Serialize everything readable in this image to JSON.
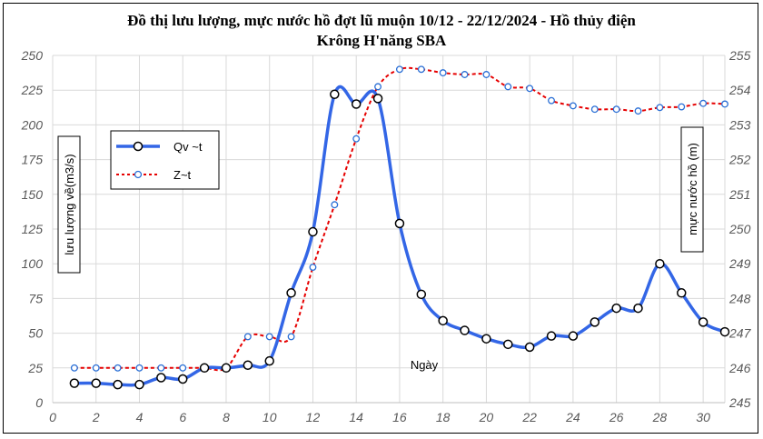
{
  "chart_data": {
    "type": "line",
    "title_line1": "Đồ thị lưu lượng, mực nước hồ đợt lũ muộn 10/12 - 22/12/2024 - Hồ thủy điện",
    "title_line2": "Krông H'năng SBA",
    "xlabel": "Ngày",
    "ylabel_left": "lưu lượng về(m3/s)",
    "ylabel_right": "mực nước hồ (m)",
    "xlim": [
      0,
      31
    ],
    "x_ticks": [
      "0",
      "2",
      "4",
      "6",
      "8",
      "10",
      "12",
      "14",
      "16",
      "18",
      "20",
      "22",
      "24",
      "26",
      "28",
      "30"
    ],
    "ylim_left": [
      0,
      250
    ],
    "y_ticks_left": [
      "0",
      "25",
      "50",
      "75",
      "100",
      "125",
      "150",
      "175",
      "200",
      "225",
      "250"
    ],
    "ylim_right": [
      245,
      255
    ],
    "y_ticks_right": [
      "245",
      "246",
      "247",
      "248",
      "249",
      "250",
      "251",
      "252",
      "253",
      "254",
      "255"
    ],
    "grid": true,
    "legend": "left",
    "series": [
      {
        "name": "Qv ~t",
        "axis": "left",
        "color": "#3366e6",
        "style": "solid",
        "x": [
          1,
          2,
          3,
          4,
          5,
          6,
          7,
          8,
          9,
          10,
          11,
          12,
          13,
          14,
          15,
          16,
          17,
          18,
          19,
          20,
          21,
          22,
          23,
          24,
          25,
          26,
          27,
          28,
          29,
          30,
          31
        ],
        "values": [
          14,
          14,
          13,
          13,
          18,
          17,
          25,
          25,
          27,
          30,
          79,
          123,
          222,
          215,
          219,
          129,
          78,
          59,
          52,
          46,
          42,
          40,
          48,
          48,
          58,
          68,
          68,
          100,
          79,
          58,
          51
        ]
      },
      {
        "name": "Z~t",
        "axis": "right",
        "color": "#e60000",
        "style": "dashed",
        "x": [
          1,
          2,
          3,
          4,
          5,
          6,
          7,
          8,
          9,
          10,
          11,
          12,
          13,
          14,
          15,
          16,
          17,
          18,
          19,
          20,
          21,
          22,
          23,
          24,
          25,
          26,
          27,
          28,
          29,
          30,
          31
        ],
        "values": [
          246.0,
          246.0,
          246.0,
          246.0,
          246.0,
          246.0,
          246.0,
          246.0,
          246.9,
          246.9,
          246.9,
          248.9,
          250.7,
          252.6,
          254.1,
          254.6,
          254.6,
          254.5,
          254.45,
          254.45,
          254.1,
          254.05,
          253.7,
          253.55,
          253.45,
          253.45,
          253.4,
          253.5,
          253.52,
          253.62,
          253.6
        ]
      }
    ]
  }
}
